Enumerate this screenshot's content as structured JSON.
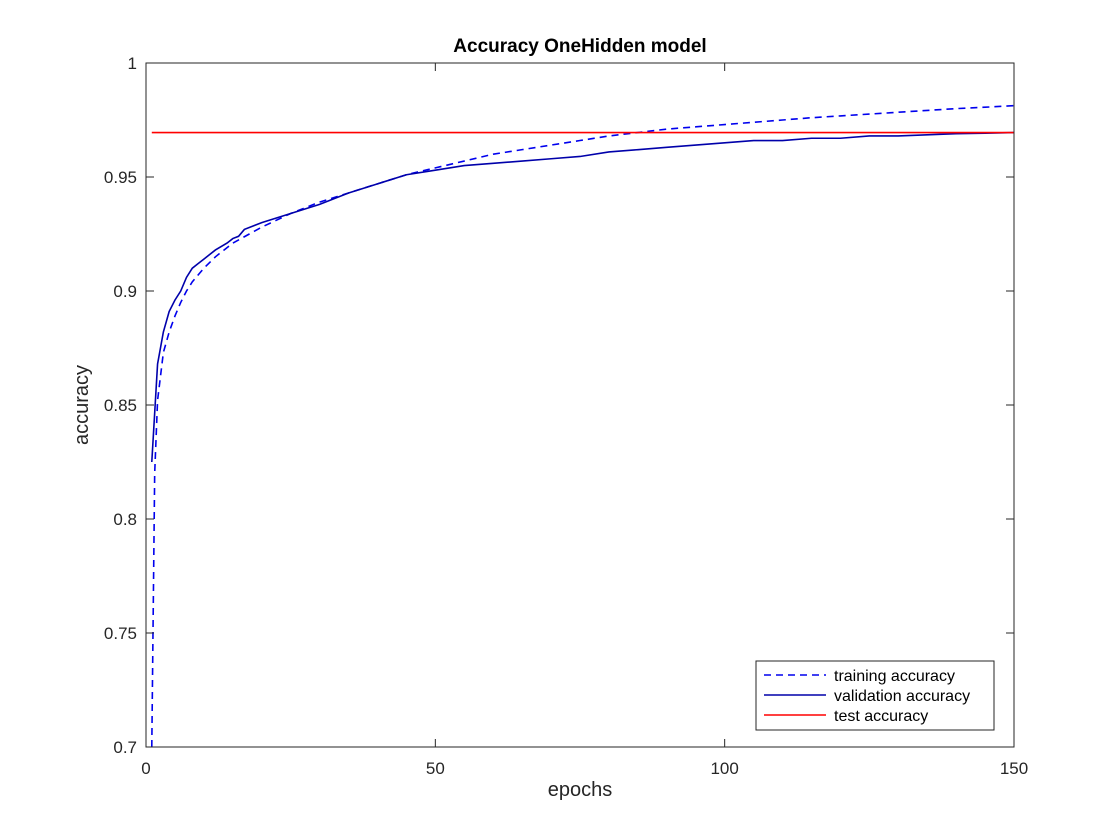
{
  "chart_data": {
    "type": "line",
    "title": "Accuracy OneHidden model",
    "xlabel": "epochs",
    "ylabel": "accuracy",
    "xlim": [
      0,
      150
    ],
    "ylim": [
      0.7,
      1
    ],
    "xticks": [
      0,
      50,
      100,
      150
    ],
    "xtick_labels": [
      "0",
      "50",
      "100",
      "150"
    ],
    "yticks": [
      0.7,
      0.75,
      0.8,
      0.85,
      0.9,
      0.95,
      1
    ],
    "ytick_labels": [
      "0.7",
      "0.75",
      "0.8",
      "0.85",
      "0.9",
      "0.95",
      "1"
    ],
    "grid": false,
    "box": true,
    "legend": {
      "location": "bottom-right",
      "entries": [
        "training accuracy",
        "validation accuracy",
        "test accuracy"
      ]
    },
    "series": [
      {
        "name": "training accuracy",
        "color": "#0000ee",
        "style": "dashed",
        "x": [
          1,
          1.5,
          2,
          3,
          4,
          5,
          6,
          7,
          8,
          9,
          10,
          12,
          15,
          20,
          25,
          30,
          35,
          40,
          45,
          50,
          55,
          60,
          65,
          70,
          75,
          80,
          85,
          90,
          95,
          100,
          105,
          110,
          115,
          120,
          125,
          130,
          135,
          140,
          145,
          150
        ],
        "y": [
          0.7,
          0.82,
          0.852,
          0.873,
          0.882,
          0.889,
          0.895,
          0.9,
          0.904,
          0.907,
          0.91,
          0.915,
          0.921,
          0.928,
          0.934,
          0.939,
          0.943,
          0.947,
          0.951,
          0.954,
          0.957,
          0.96,
          0.962,
          0.964,
          0.966,
          0.968,
          0.9695,
          0.971,
          0.972,
          0.973,
          0.974,
          0.975,
          0.976,
          0.9768,
          0.9776,
          0.9784,
          0.9792,
          0.98,
          0.9806,
          0.9813
        ]
      },
      {
        "name": "validation accuracy",
        "color": "#0000aa",
        "style": "solid",
        "x": [
          1,
          2,
          3,
          4,
          5,
          6,
          7,
          8,
          9,
          10,
          12,
          14,
          15,
          16,
          17,
          20,
          25,
          30,
          35,
          40,
          45,
          50,
          55,
          60,
          65,
          70,
          75,
          80,
          85,
          90,
          95,
          100,
          105,
          110,
          115,
          120,
          125,
          130,
          135,
          140,
          145,
          150
        ],
        "y": [
          0.825,
          0.868,
          0.882,
          0.891,
          0.896,
          0.9,
          0.906,
          0.91,
          0.912,
          0.914,
          0.918,
          0.921,
          0.923,
          0.924,
          0.927,
          0.93,
          0.934,
          0.938,
          0.943,
          0.947,
          0.951,
          0.953,
          0.955,
          0.956,
          0.957,
          0.958,
          0.959,
          0.961,
          0.962,
          0.963,
          0.964,
          0.965,
          0.966,
          0.966,
          0.967,
          0.967,
          0.968,
          0.968,
          0.9685,
          0.969,
          0.9692,
          0.9695
        ]
      },
      {
        "name": "test accuracy",
        "color": "#ff0000",
        "style": "solid",
        "x": [
          1,
          150
        ],
        "y": [
          0.9695,
          0.9695
        ]
      }
    ]
  }
}
